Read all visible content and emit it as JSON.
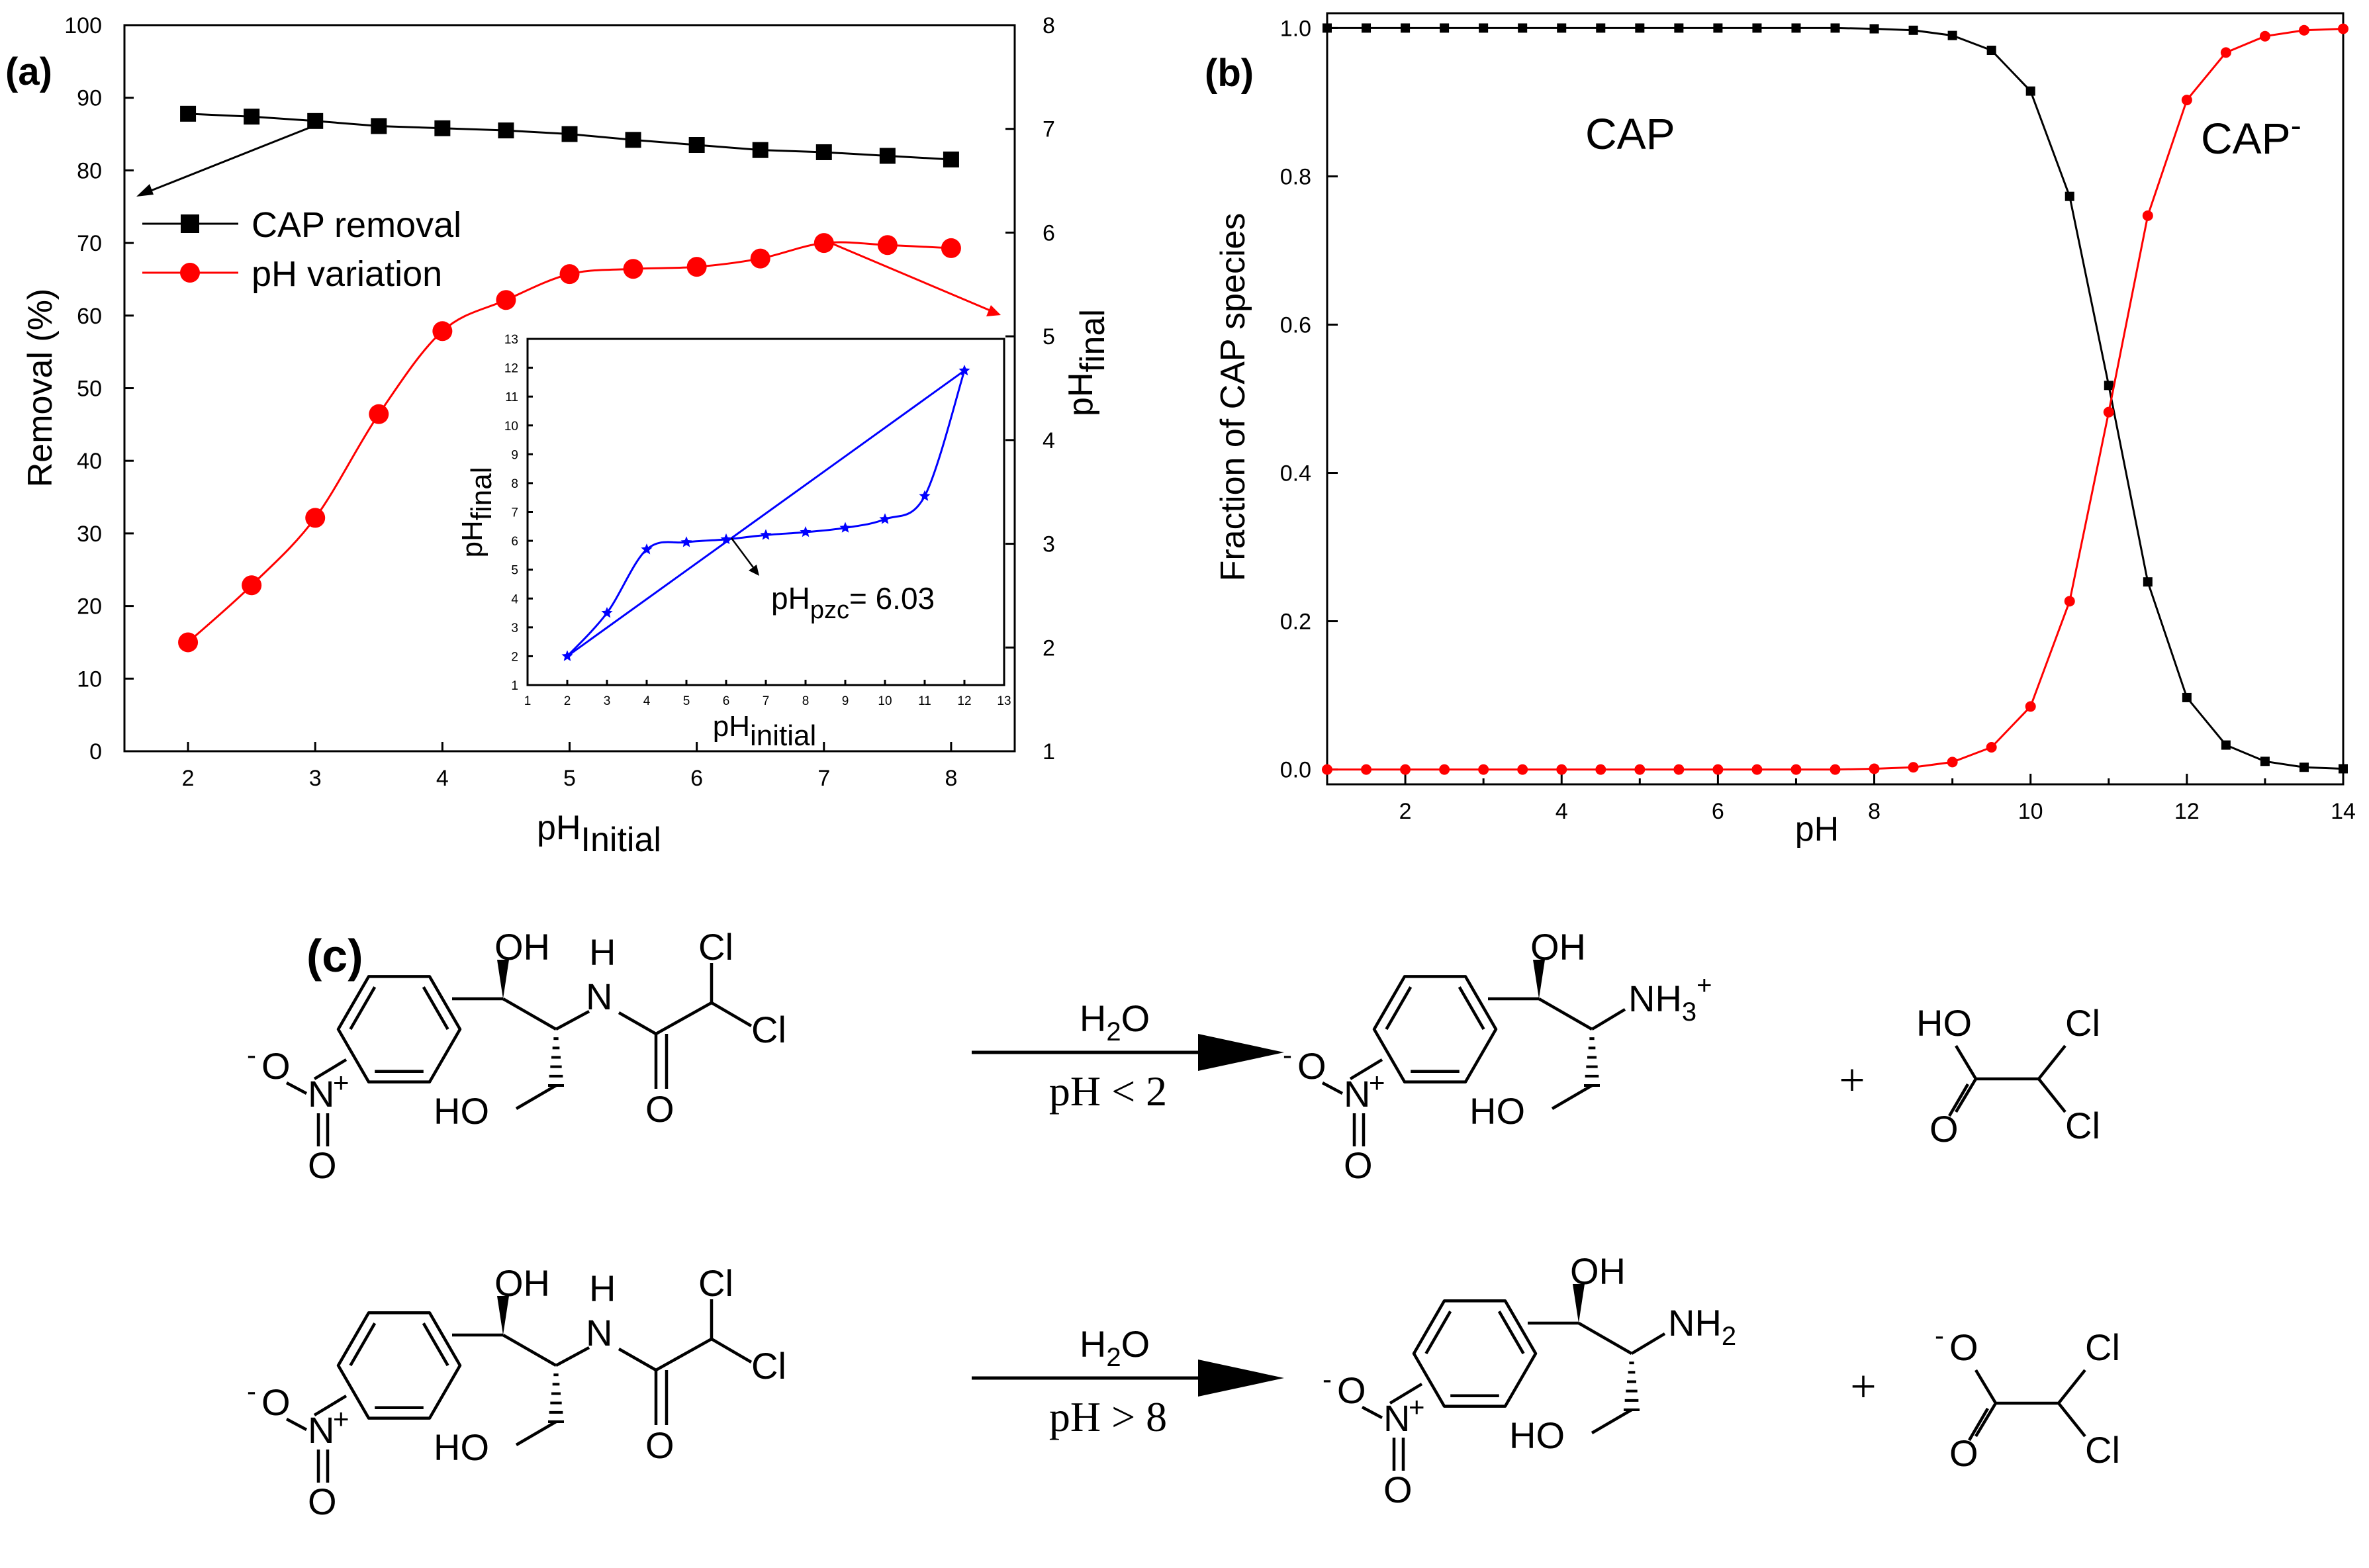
{
  "panel_labels": {
    "a": "(a)",
    "b": "(b)",
    "c": "(c)"
  },
  "colors": {
    "black_series": "#000000",
    "red_series": "#ff0000",
    "inset_series": "#0000ff"
  },
  "chart_data": [
    {
      "id": "a",
      "type": "line",
      "xlabel_main": "pH",
      "xlabel_sub": "Initial",
      "ylabel": "Removal (%)",
      "y2label_main": "pH",
      "y2label_sub": "final",
      "xlim": [
        1.5,
        8.5
      ],
      "ylim": [
        0,
        100
      ],
      "y2lim": [
        1,
        8
      ],
      "xticks": [
        2,
        3,
        4,
        5,
        6,
        7,
        8
      ],
      "yticks": [
        0,
        10,
        20,
        30,
        40,
        50,
        60,
        70,
        80,
        90,
        100
      ],
      "y2ticks": [
        1,
        2,
        3,
        4,
        5,
        6,
        7,
        8
      ],
      "series": [
        {
          "name": "CAP removal",
          "axis": "left",
          "marker": "square",
          "x": [
            2,
            2.5,
            3,
            3.5,
            4,
            4.5,
            5,
            5.5,
            6,
            6.5,
            7,
            7.5,
            8
          ],
          "values": [
            87.8,
            87.4,
            86.8,
            86.1,
            85.8,
            85.5,
            85.0,
            84.2,
            83.5,
            82.8,
            82.5,
            82.0,
            81.5
          ]
        },
        {
          "name": "pH variation",
          "axis": "right",
          "marker": "circle",
          "x": [
            2,
            2.5,
            3,
            3.5,
            4,
            4.5,
            5,
            5.5,
            6,
            6.5,
            7,
            7.5,
            8
          ],
          "values": [
            2.05,
            2.6,
            3.25,
            4.25,
            5.05,
            5.35,
            5.6,
            5.65,
            5.67,
            5.75,
            5.9,
            5.88,
            5.85
          ]
        }
      ],
      "inset": {
        "type": "line",
        "xlabel_main": "pH",
        "xlabel_sub": "initial",
        "ylabel_main": "pH",
        "ylabel_sub": "final",
        "xlim": [
          1,
          13
        ],
        "ylim": [
          1,
          13
        ],
        "xticks": [
          1,
          2,
          3,
          4,
          5,
          6,
          7,
          8,
          9,
          10,
          11,
          12,
          13
        ],
        "yticks": [
          1,
          2,
          3,
          4,
          5,
          6,
          7,
          8,
          9,
          10,
          11,
          12,
          13
        ],
        "points_x": [
          2,
          3,
          4,
          5,
          6,
          7,
          8,
          9,
          10,
          11,
          12
        ],
        "points_y": [
          2.0,
          3.5,
          5.7,
          5.95,
          6.05,
          6.2,
          6.3,
          6.45,
          6.75,
          7.55,
          11.9
        ],
        "reference_line": [
          [
            2,
            2
          ],
          [
            12,
            11.9
          ]
        ],
        "annotation_main": "pH",
        "annotation_sub": "pzc",
        "annotation_value": "= 6.03"
      }
    },
    {
      "id": "b",
      "type": "line",
      "xlabel": "pH",
      "ylabel": "Fraction of CAP species",
      "xlim": [
        1,
        14
      ],
      "ylim": [
        -0.02,
        1.02
      ],
      "xticks": [
        2,
        4,
        6,
        8,
        10,
        12,
        14
      ],
      "yticks": [
        0.0,
        0.2,
        0.4,
        0.6,
        0.8,
        1.0
      ],
      "ytick_labels": [
        "0.0",
        "0.2",
        "0.4",
        "0.6",
        "0.8",
        "1.0"
      ],
      "x": [
        1,
        1.5,
        2,
        2.5,
        3,
        3.5,
        4,
        4.5,
        5,
        5.5,
        6,
        6.5,
        7,
        7.5,
        8,
        8.5,
        9,
        9.5,
        10,
        10.5,
        11,
        11.5,
        12,
        12.5,
        13,
        13.5,
        14
      ],
      "series": [
        {
          "name": "CAP",
          "marker": "square",
          "values": [
            1,
            1,
            1,
            1,
            1,
            1,
            1,
            1,
            1,
            1,
            1,
            1,
            1,
            1,
            0.999,
            0.997,
            0.99,
            0.97,
            0.915,
            0.773,
            0.518,
            0.253,
            0.097,
            0.033,
            0.011,
            0.003,
            0.001
          ]
        },
        {
          "name": "CAP-",
          "marker": "circle",
          "values": [
            0,
            0,
            0,
            0,
            0,
            0,
            0,
            0,
            0,
            0,
            0,
            0,
            0,
            0,
            0.001,
            0.003,
            0.01,
            0.03,
            0.085,
            0.227,
            0.482,
            0.747,
            0.903,
            0.967,
            0.989,
            0.997,
            0.999
          ]
        }
      ],
      "annotations": {
        "cap": "CAP",
        "cap_anion": "CAP",
        "cap_anion_sup": "-"
      }
    }
  ],
  "scheme_c": {
    "atoms": {
      "oh": "OH",
      "h": "H",
      "n": "N",
      "cl": "Cl",
      "o": "O",
      "ho": "HO",
      "o_minus_sup": "-",
      "o_minus": "O",
      "n_plus": "N",
      "plus_sup": "+",
      "nh3": "NH",
      "nh3_sub": "3",
      "nh3_sup": "+",
      "nh2": "NH",
      "nh2_sub": "2",
      "acid_o_sup": "-"
    },
    "reaction1": {
      "reagent_main": "H",
      "reagent_sub": "2",
      "reagent_tail": "O",
      "condition": "pH < 2",
      "plus": "+"
    },
    "reaction2": {
      "reagent_main": "H",
      "reagent_sub": "2",
      "reagent_tail": "O",
      "condition": "pH > 8",
      "plus": "+"
    }
  }
}
